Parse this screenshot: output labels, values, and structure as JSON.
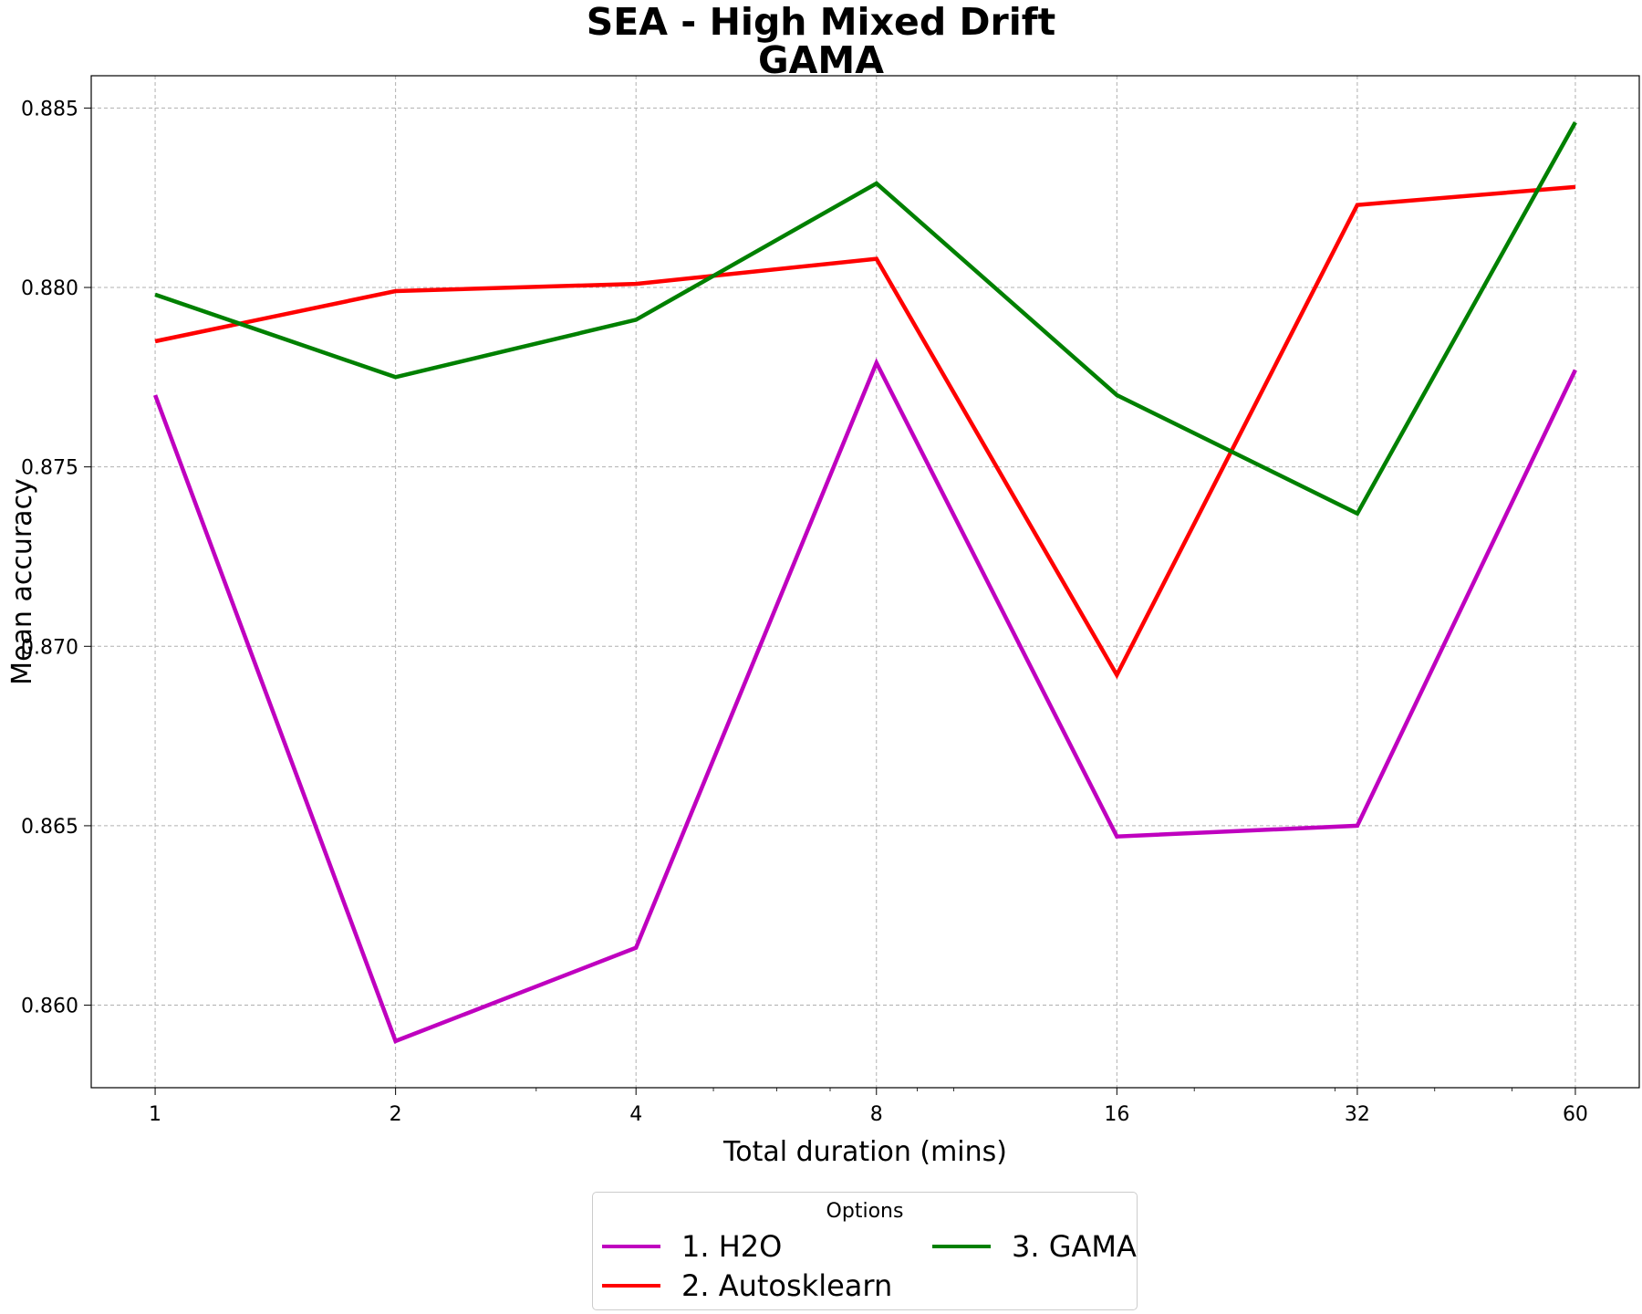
{
  "chart_data": {
    "type": "line",
    "title": "SEA - High Mixed Drift",
    "subtitle": "GAMA",
    "xlabel": "Total duration (mins)",
    "ylabel": "Mean accuracy",
    "x_scale": "log",
    "x": [
      1,
      2,
      4,
      8,
      16,
      32,
      60
    ],
    "x_tick_labels": [
      "1",
      "2",
      "4",
      "8",
      "16",
      "32",
      "60"
    ],
    "ylim": [
      0.8577,
      0.8859
    ],
    "y_ticks": [
      0.86,
      0.865,
      0.87,
      0.875,
      0.88,
      0.885
    ],
    "y_tick_labels": [
      "0.860",
      "0.865",
      "0.870",
      "0.875",
      "0.880",
      "0.885"
    ],
    "grid": true,
    "legend": {
      "title": "Options",
      "placement": "below-center",
      "columns": 2
    },
    "series": [
      {
        "name": "1. H2O",
        "color": "#bf00bf",
        "values": [
          0.877,
          0.859,
          0.8616,
          0.8779,
          0.8647,
          0.865,
          0.8777
        ]
      },
      {
        "name": "2. Autosklearn",
        "color": "#ff0000",
        "values": [
          0.8785,
          0.8799,
          0.8801,
          0.8808,
          0.8692,
          0.8823,
          0.8828
        ]
      },
      {
        "name": "3. GAMA",
        "color": "#008000",
        "values": [
          0.8798,
          0.8775,
          0.8791,
          0.8829,
          0.877,
          0.8737,
          0.8846
        ]
      }
    ]
  }
}
